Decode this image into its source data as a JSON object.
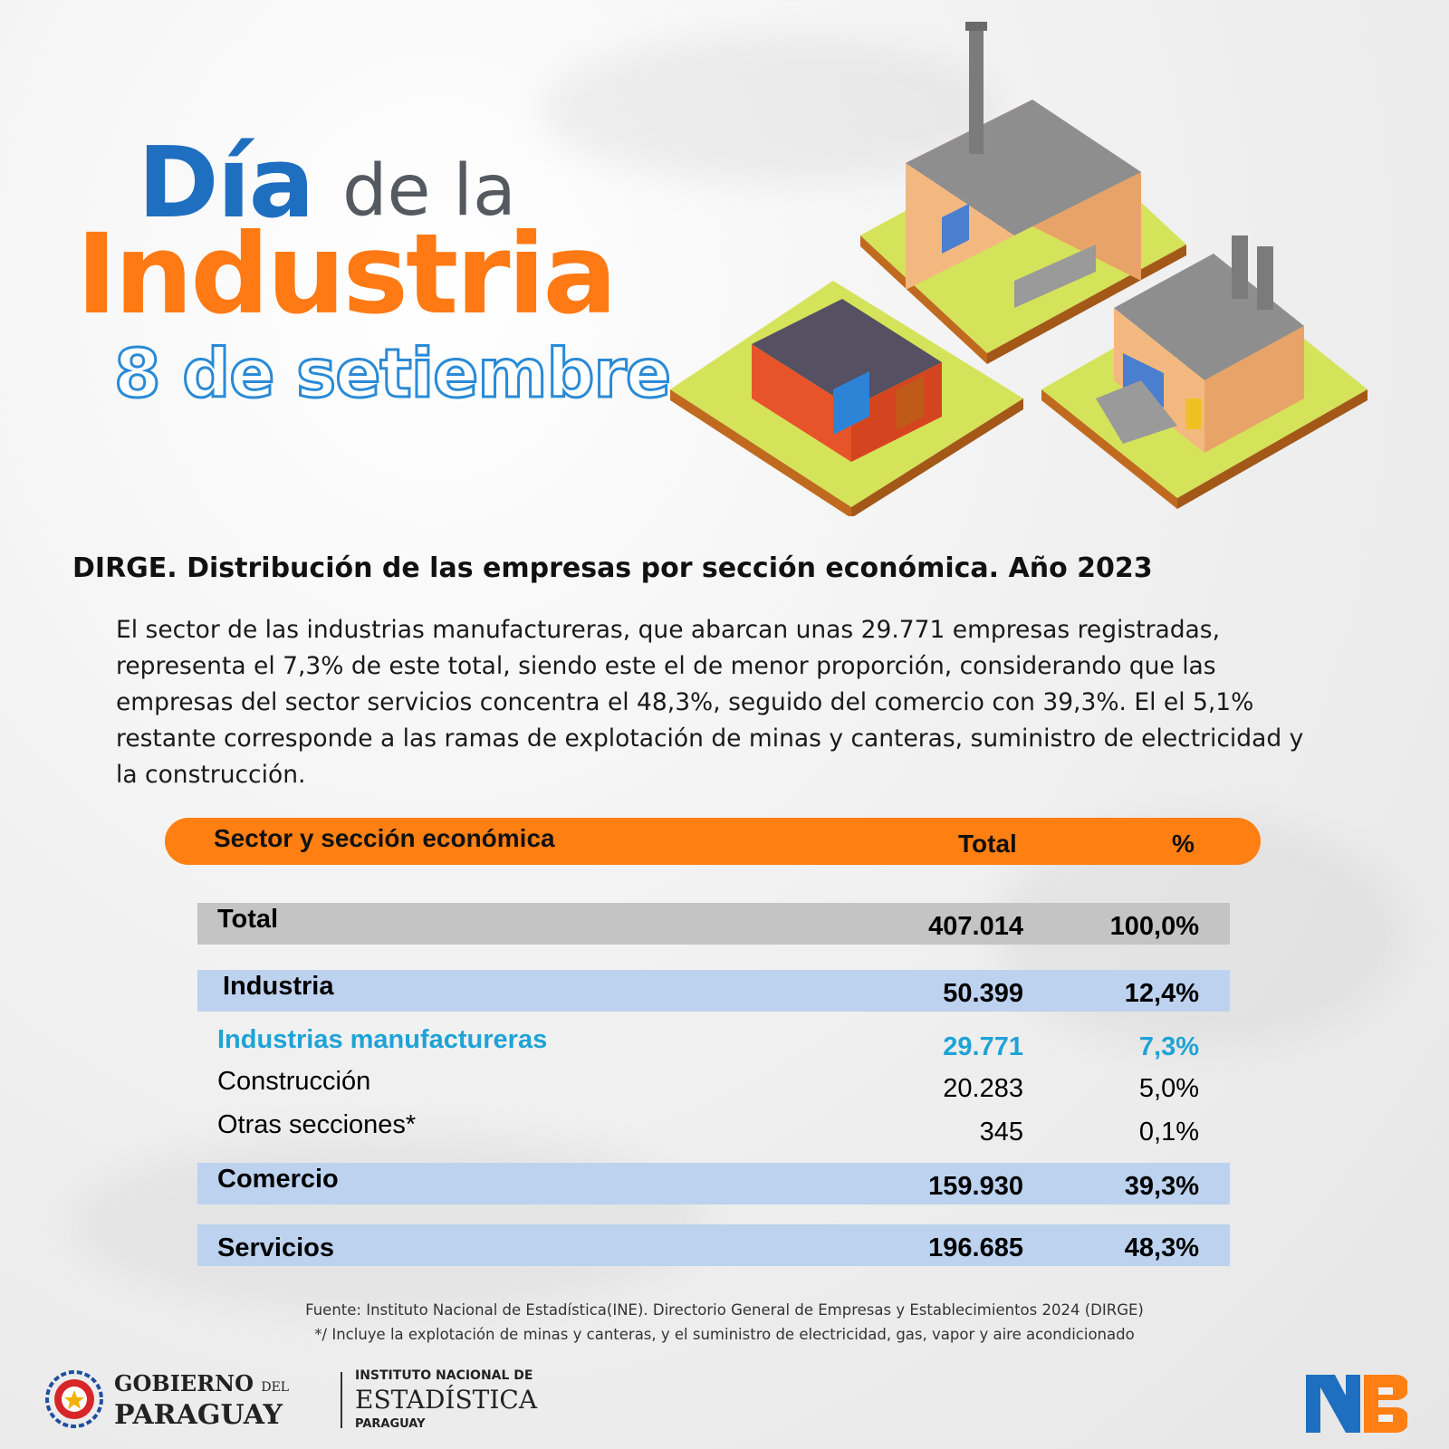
{
  "title": {
    "dia": "Día",
    "de_la": "de la",
    "industria": "Industria",
    "date": "8 de setiembre"
  },
  "heading": "DIRGE. Distribución de las empresas por sección económica. Año 2023",
  "paragraph": "El sector de las industrias manufactureras, que abarcan unas 29.771 empresas registradas, representa el 7,3% de este total, siendo este el de menor proporción, considerando que las empresas del sector servicios concentra el 48,3%, seguido del comercio con 39,3%. El el 5,1% restante corresponde a las ramas de explotación de minas y canteras, suministro de electricidad y la construcción.",
  "chart_data": {
    "type": "table",
    "title": "DIRGE. Distribución de las empresas por sección económica. Año 2023",
    "columns": [
      "Sector  y sección económica",
      "Total",
      "%"
    ],
    "rows": [
      {
        "label": "Total",
        "total": "407.014",
        "pct": "100,0%"
      },
      {
        "label": "Industria",
        "total": "50.399",
        "pct": "12,4%"
      },
      {
        "label": "Industrias manufactureras",
        "total": "29.771",
        "pct": "7,3%"
      },
      {
        "label": "Construcción",
        "total": "20.283",
        "pct": "5,0%"
      },
      {
        "label": "Otras secciones*",
        "total": "345",
        "pct": "0,1%"
      },
      {
        "label": "Comercio",
        "total": "159.930",
        "pct": "39,3%"
      },
      {
        "label": "Servicios",
        "total": "196.685",
        "pct": "48,3%"
      }
    ]
  },
  "footnotes": {
    "source": "Fuente: Instituto Nacional de Estadística(INE). Directorio General de Empresas y Establecimientos 2024 (DIRGE)",
    "note": "*/ Incluye la explotación de minas y canteras, y el suministro de electricidad, gas, vapor y aire acondicionado"
  },
  "logos": {
    "gobierno_1": "GOBIERNO",
    "gobierno_del": "DEL",
    "gobierno_2": "PARAGUAY",
    "ine_1": "INSTITUTO NACIONAL DE",
    "ine_2": "ESTADÍSTICA",
    "ine_3": "PARAGUAY"
  },
  "colors": {
    "orange": "#ff7f12",
    "blue": "#1f6fc0",
    "teal": "#1fa3d6",
    "row_gray": "#c4c4c4",
    "row_blue": "#bcd2ee"
  }
}
